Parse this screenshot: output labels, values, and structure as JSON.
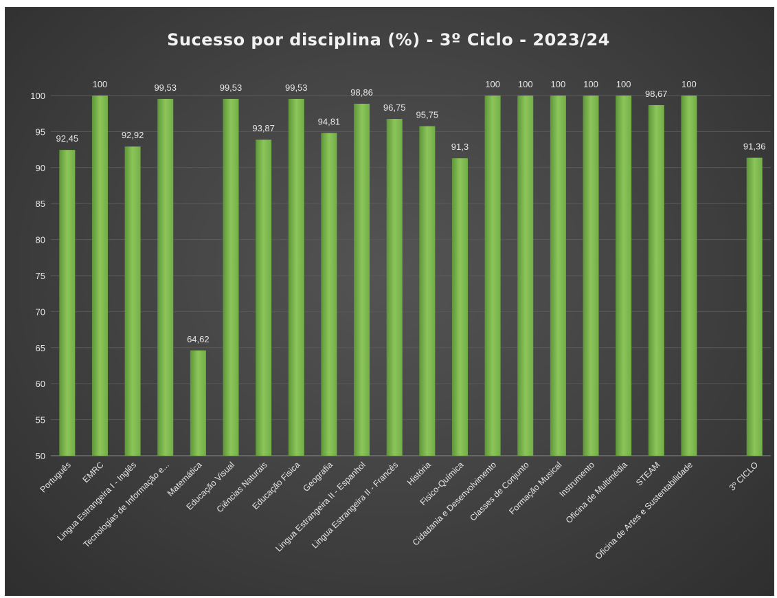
{
  "chart_data": {
    "type": "bar",
    "title": "Sucesso por disciplina (%) - 3º Ciclo - 2023/24",
    "xlabel": "",
    "ylabel": "",
    "ylim": [
      50,
      100
    ],
    "yticks": [
      50,
      55,
      60,
      65,
      70,
      75,
      80,
      85,
      90,
      95,
      100
    ],
    "grid": true,
    "legend": "none",
    "colors": {
      "bar": "#72ad47",
      "bar_light": "#8cc65a",
      "bar_dark": "#5e9638",
      "background": "#404040",
      "grid": "#5a5a5a"
    },
    "categories": [
      "Português",
      "EMRC",
      "Lingua Estrangeira I - Inglês",
      "Tecnologias de Informação e...",
      "Matemática",
      "Educação Visual",
      "Ciências Naturais",
      "Educação Fisica",
      "Geografia",
      "Lingua Estrangeira II - Espanhol",
      "Lingua Estrangeira II - Francês",
      "História",
      "Fisico-Química",
      "Cidadania e Desenvolvimento",
      "Classes de Conjunto",
      "Formação Musical",
      "Instrumento",
      "Oficina de Multimédia",
      "STEAM",
      "Oficina de Artes e Sustentabilidade",
      "",
      "3º CICLO"
    ],
    "values": [
      92.45,
      100,
      92.92,
      99.53,
      64.62,
      99.53,
      93.87,
      99.53,
      94.81,
      98.86,
      96.75,
      95.75,
      91.3,
      100,
      100,
      100,
      100,
      100,
      98.67,
      100,
      null,
      91.36
    ],
    "value_labels": [
      "92,45",
      "100",
      "92,92",
      "99,53",
      "64,62",
      "99,53",
      "93,87",
      "99,53",
      "94,81",
      "98,86",
      "96,75",
      "95,75",
      "91,3",
      "100",
      "100",
      "100",
      "100",
      "100",
      "98,67",
      "100",
      "",
      "91,36"
    ]
  }
}
